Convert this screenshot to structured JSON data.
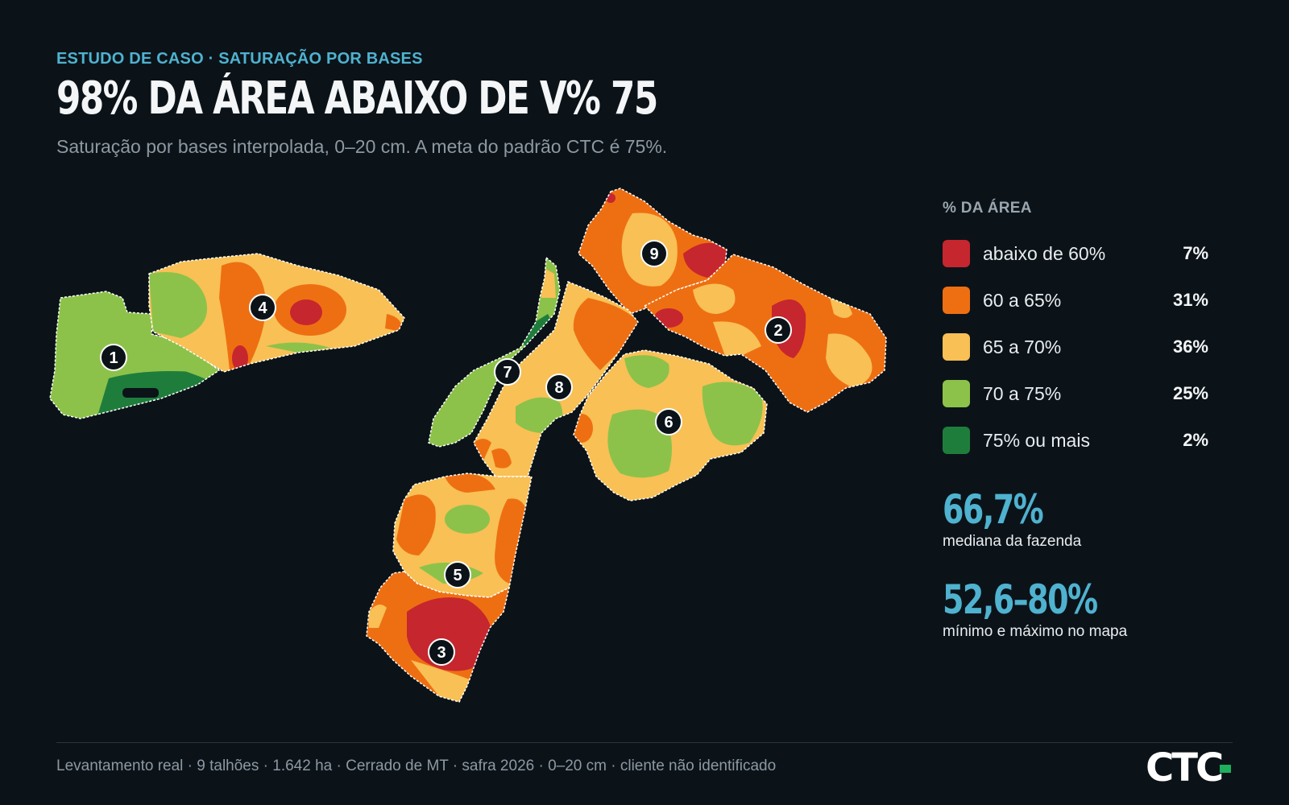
{
  "header": {
    "eyebrow": "ESTUDO DE CASO · SATURAÇÃO POR BASES",
    "title": "98% DA ÁREA ABAIXO DE V% 75",
    "subtitle": "Saturação por bases interpolada, 0–20 cm. A meta do padrão CTC é 75%."
  },
  "colors": {
    "background": "#0b1319",
    "below_60": "#c6262e",
    "r60_65": "#ee6f12",
    "r65_70": "#f8c055",
    "r70_75": "#8cc24a",
    "above_75": "#1f7d3c",
    "accent": "#4fb2cf",
    "logo_accent": "#1fae5b"
  },
  "map": {
    "plot_labels": [
      "1",
      "2",
      "3",
      "4",
      "5",
      "6",
      "7",
      "8",
      "9"
    ]
  },
  "legend": {
    "title": "% DA ÁREA",
    "items": [
      {
        "label": "abaixo de 60%",
        "value": "7%",
        "color": "#c6262e"
      },
      {
        "label": "60 a 65%",
        "value": "31%",
        "color": "#ee6f12"
      },
      {
        "label": "65 a 70%",
        "value": "36%",
        "color": "#f8c055"
      },
      {
        "label": "70 a 75%",
        "value": "25%",
        "color": "#8cc24a"
      },
      {
        "label": "75% ou mais",
        "value": "2%",
        "color": "#1f7d3c"
      }
    ]
  },
  "stats": {
    "median_value": "66,7%",
    "median_label": "mediana da fazenda",
    "range_value": "52,6–80%",
    "range_label": "mínimo e máximo no mapa"
  },
  "footer": {
    "text": "Levantamento real · 9 talhões · 1.642 ha · Cerrado de MT · safra 2026 · 0–20 cm · cliente não identificado",
    "logo": "CTC"
  }
}
